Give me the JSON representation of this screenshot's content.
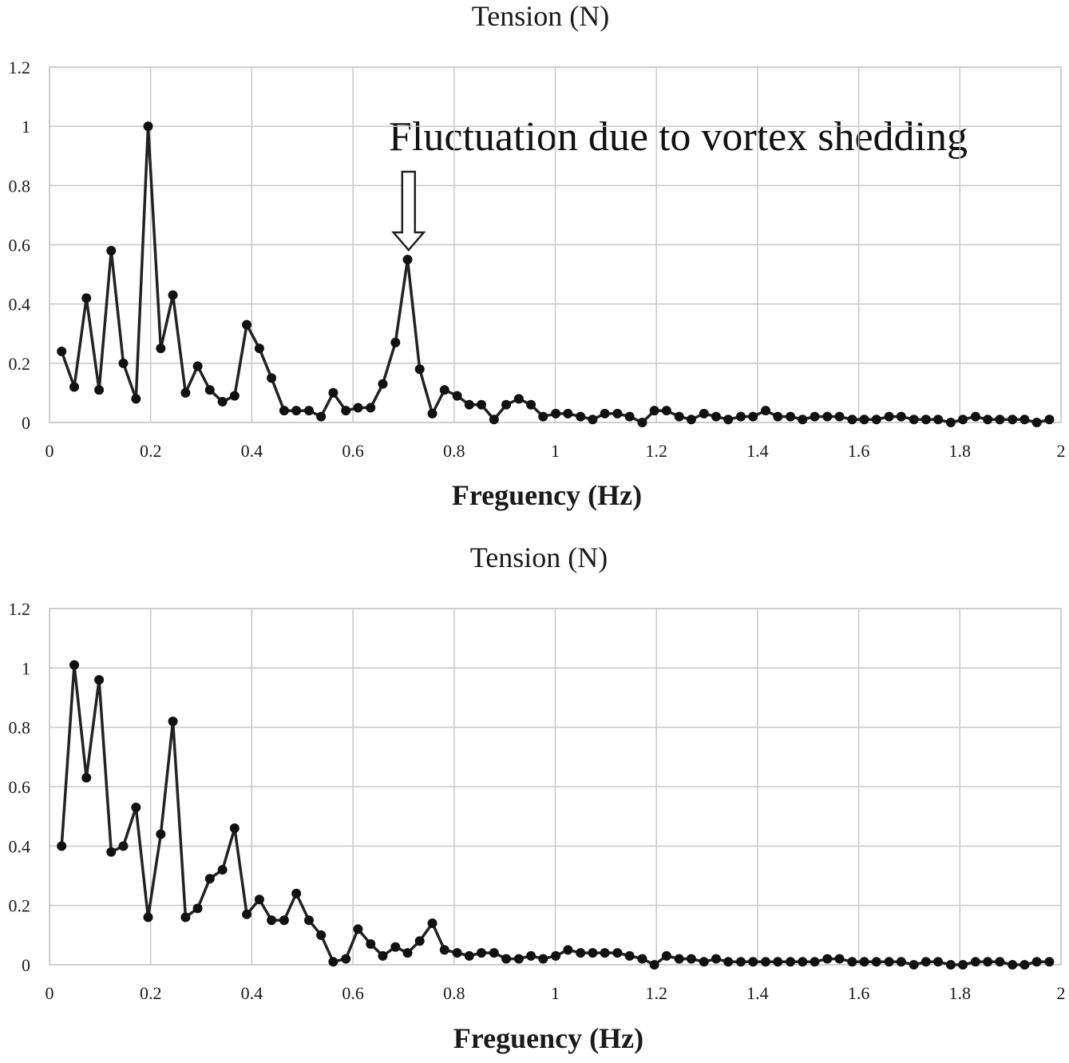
{
  "chart_data": [
    {
      "type": "line",
      "title": "Tension (N)",
      "xlabel": "Freguency (Hz)",
      "ylabel": "",
      "xlim": [
        0,
        2
      ],
      "ylim": [
        0,
        1.2
      ],
      "grid": true,
      "x_ticks": [
        "0",
        "0.2",
        "0.4",
        "0.6",
        "0.8",
        "1",
        "1.2",
        "1.4",
        "1.6",
        "1.8",
        "2"
      ],
      "y_ticks": [
        "0",
        "0.2",
        "0.4",
        "0.6",
        "0.8",
        "1",
        "1.2"
      ],
      "annotation": {
        "text": "Fluctuation due to vortex shedding",
        "x": 0.71,
        "y": 0.55
      },
      "series": [
        {
          "x": [
            0.024,
            0.049,
            0.073,
            0.098,
            0.122,
            0.146,
            0.171,
            0.195,
            0.22,
            0.244,
            0.269,
            0.293,
            0.317,
            0.342,
            0.366,
            0.39,
            0.415,
            0.439,
            0.464,
            0.488,
            0.513,
            0.537,
            0.561,
            0.586,
            0.61,
            0.635,
            0.659,
            0.684,
            0.708,
            0.732,
            0.757,
            0.781,
            0.806,
            0.83,
            0.854,
            0.879,
            0.903,
            0.928,
            0.952,
            0.976,
            1.001,
            1.025,
            1.05,
            1.074,
            1.098,
            1.123,
            1.147,
            1.172,
            1.196,
            1.22,
            1.245,
            1.269,
            1.294,
            1.318,
            1.342,
            1.367,
            1.391,
            1.416,
            1.44,
            1.465,
            1.489,
            1.513,
            1.538,
            1.562,
            1.587,
            1.611,
            1.635,
            1.66,
            1.684,
            1.709,
            1.733,
            1.757,
            1.782,
            1.806,
            1.831,
            1.855,
            1.879,
            1.904,
            1.928,
            1.952,
            1.977
          ],
          "y": [
            0.24,
            0.12,
            0.42,
            0.11,
            0.58,
            0.2,
            0.08,
            1.0,
            0.25,
            0.43,
            0.1,
            0.19,
            0.11,
            0.07,
            0.09,
            0.33,
            0.25,
            0.15,
            0.04,
            0.04,
            0.04,
            0.02,
            0.1,
            0.04,
            0.05,
            0.05,
            0.13,
            0.27,
            0.55,
            0.18,
            0.03,
            0.11,
            0.09,
            0.06,
            0.06,
            0.01,
            0.06,
            0.08,
            0.06,
            0.02,
            0.03,
            0.03,
            0.02,
            0.01,
            0.03,
            0.03,
            0.02,
            0.0,
            0.04,
            0.04,
            0.02,
            0.01,
            0.03,
            0.02,
            0.01,
            0.02,
            0.02,
            0.04,
            0.02,
            0.02,
            0.01,
            0.02,
            0.02,
            0.02,
            0.01,
            0.01,
            0.01,
            0.02,
            0.02,
            0.01,
            0.01,
            0.01,
            0.0,
            0.01,
            0.02,
            0.01,
            0.01,
            0.01,
            0.01,
            0.0,
            0.01
          ]
        }
      ]
    },
    {
      "type": "line",
      "title": "Tension (N)",
      "xlabel": "Freguency (Hz)",
      "ylabel": "",
      "xlim": [
        0,
        2
      ],
      "ylim": [
        0,
        1.2
      ],
      "grid": true,
      "x_ticks": [
        "0",
        "0.2",
        "0.4",
        "0.6",
        "0.8",
        "1",
        "1.2",
        "1.4",
        "1.6",
        "1.8",
        "2"
      ],
      "y_ticks": [
        "0",
        "0.2",
        "0.4",
        "0.6",
        "0.8",
        "1",
        "1.2"
      ],
      "series": [
        {
          "x": [
            0.024,
            0.049,
            0.073,
            0.098,
            0.122,
            0.146,
            0.171,
            0.195,
            0.22,
            0.244,
            0.269,
            0.293,
            0.317,
            0.342,
            0.366,
            0.39,
            0.415,
            0.439,
            0.464,
            0.488,
            0.513,
            0.537,
            0.561,
            0.586,
            0.61,
            0.635,
            0.659,
            0.684,
            0.708,
            0.732,
            0.757,
            0.781,
            0.806,
            0.83,
            0.854,
            0.879,
            0.903,
            0.928,
            0.952,
            0.976,
            1.001,
            1.025,
            1.05,
            1.074,
            1.098,
            1.123,
            1.147,
            1.172,
            1.196,
            1.22,
            1.245,
            1.269,
            1.294,
            1.318,
            1.342,
            1.367,
            1.391,
            1.416,
            1.44,
            1.465,
            1.489,
            1.513,
            1.538,
            1.562,
            1.587,
            1.611,
            1.635,
            1.66,
            1.684,
            1.709,
            1.733,
            1.757,
            1.782,
            1.806,
            1.831,
            1.855,
            1.879,
            1.904,
            1.928,
            1.952,
            1.977
          ],
          "y": [
            0.4,
            1.01,
            0.63,
            0.96,
            0.38,
            0.4,
            0.53,
            0.16,
            0.44,
            0.82,
            0.16,
            0.19,
            0.29,
            0.32,
            0.46,
            0.17,
            0.22,
            0.15,
            0.15,
            0.24,
            0.15,
            0.1,
            0.01,
            0.02,
            0.12,
            0.07,
            0.03,
            0.06,
            0.04,
            0.08,
            0.14,
            0.05,
            0.04,
            0.03,
            0.04,
            0.04,
            0.02,
            0.02,
            0.03,
            0.02,
            0.03,
            0.05,
            0.04,
            0.04,
            0.04,
            0.04,
            0.03,
            0.02,
            0.0,
            0.03,
            0.02,
            0.02,
            0.01,
            0.02,
            0.01,
            0.01,
            0.01,
            0.01,
            0.01,
            0.01,
            0.01,
            0.01,
            0.02,
            0.02,
            0.01,
            0.01,
            0.01,
            0.01,
            0.01,
            0.0,
            0.01,
            0.01,
            0.0,
            0.0,
            0.01,
            0.01,
            0.01,
            0.0,
            0.0,
            0.01,
            0.01
          ]
        }
      ]
    }
  ]
}
